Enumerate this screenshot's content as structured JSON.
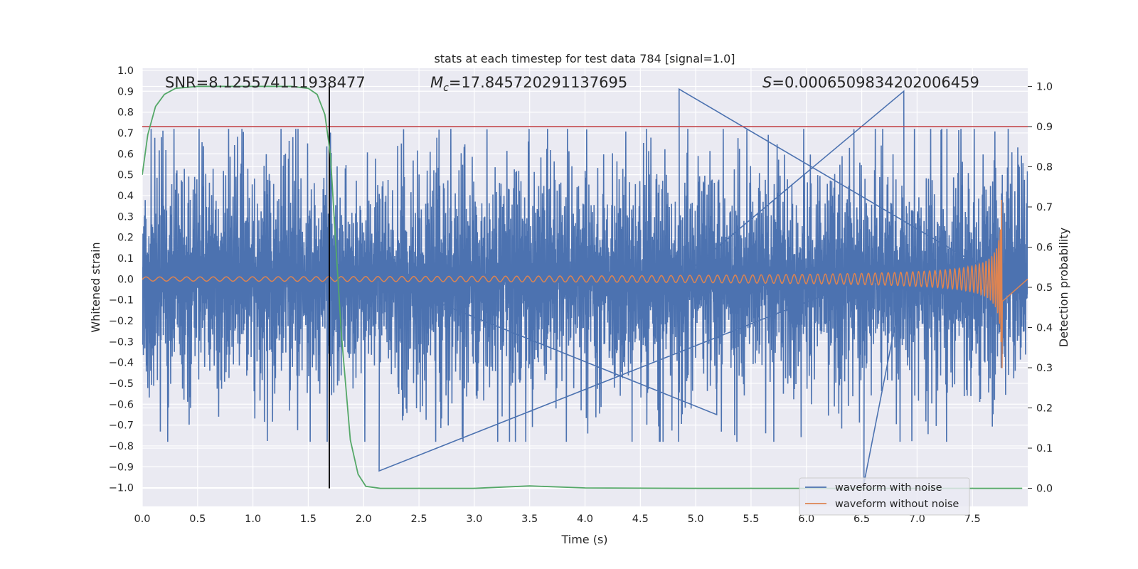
{
  "chart_data": {
    "type": "line",
    "title": "stats at each timestep for test data 784 [signal=1.0]",
    "xlabel": "Time (s)",
    "ylabel": "Whitened strain",
    "y2label": "Detection probability",
    "xlim": [
      0.0,
      8.0
    ],
    "ylim": [
      -1.09,
      1.01
    ],
    "y2lim": [
      -0.045,
      1.045
    ],
    "xticks": [
      "0.0",
      "0.5",
      "1.0",
      "1.5",
      "2.0",
      "2.5",
      "3.0",
      "3.5",
      "4.0",
      "4.5",
      "5.0",
      "5.5",
      "6.0",
      "6.5",
      "7.0",
      "7.5"
    ],
    "yticks": [
      "1.0",
      "0.9",
      "0.8",
      "0.7",
      "0.6",
      "0.5",
      "0.4",
      "0.3",
      "0.2",
      "0.1",
      "0.0",
      "−0.1",
      "−0.2",
      "−0.3",
      "−0.4",
      "−0.5",
      "−0.6",
      "−0.7",
      "−0.8",
      "−0.9",
      "−1.0"
    ],
    "y2ticks": [
      "1.0",
      "0.9",
      "0.8",
      "0.7",
      "0.6",
      "0.5",
      "0.4",
      "0.3",
      "0.2",
      "0.1",
      "0.0"
    ],
    "grid": true,
    "legend_position": "lower-right",
    "annotations": {
      "snr": "SNR=8.125574111938477",
      "mc_symbol": "M",
      "mc_sub": "c",
      "mc_value": "=17.845720291137695",
      "s_symbol": "S",
      "s_value": "=0.0006509834202006459"
    },
    "colors": {
      "noisy": "#4c72b0",
      "clean": "#dd8452",
      "probability": "#55a868",
      "threshold": "#c44e52",
      "marker": "#000000",
      "background": "#eaeaf2"
    },
    "series": [
      {
        "name": "waveform with noise",
        "kind": "noisy-strain",
        "time_range": [
          0.0,
          8.0
        ],
        "typical_amplitude": 0.3,
        "max": 0.91,
        "min": -0.98,
        "notable_spikes": [
          [
            4.85,
            0.91
          ],
          [
            6.88,
            0.9
          ],
          [
            6.52,
            -0.98
          ],
          [
            2.14,
            -0.92
          ],
          [
            5.19,
            -0.65
          ]
        ]
      },
      {
        "name": "waveform without noise",
        "kind": "chirp",
        "time_range": [
          0.0,
          7.77
        ],
        "start_amplitude": 0.01,
        "peak_time": 7.77,
        "peak_max": 0.44,
        "peak_min": -0.47
      },
      {
        "kind": "detection-probability",
        "axis": "right",
        "points": [
          [
            0.0,
            0.78
          ],
          [
            0.05,
            0.88
          ],
          [
            0.12,
            0.95
          ],
          [
            0.2,
            0.98
          ],
          [
            0.3,
            0.995
          ],
          [
            0.5,
            1.0
          ],
          [
            1.0,
            1.0
          ],
          [
            1.35,
            1.0
          ],
          [
            1.5,
            0.995
          ],
          [
            1.58,
            0.98
          ],
          [
            1.65,
            0.93
          ],
          [
            1.7,
            0.83
          ],
          [
            1.75,
            0.6
          ],
          [
            1.8,
            0.38
          ],
          [
            1.88,
            0.12
          ],
          [
            1.95,
            0.035
          ],
          [
            2.02,
            0.005
          ],
          [
            2.15,
            0.0
          ],
          [
            3.0,
            0.0
          ],
          [
            3.5,
            0.006
          ],
          [
            4.0,
            0.001
          ],
          [
            5.0,
            0.0
          ],
          [
            7.95,
            0.0
          ]
        ]
      }
    ],
    "threshold_line": 0.9,
    "marker_time": 1.69
  }
}
